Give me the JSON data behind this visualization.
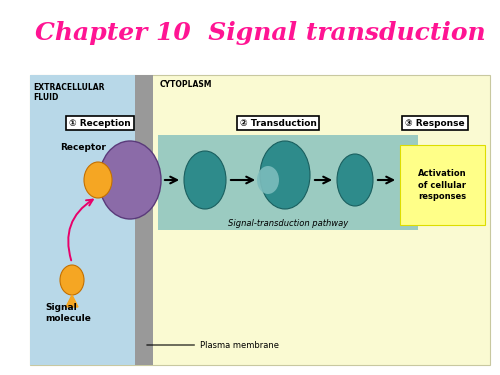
{
  "title": "Chapter 10  Signal transduction",
  "title_color": "#FF1493",
  "title_fontsize": 18,
  "bg_color": "#FFFFFF",
  "light_blue": "#B8D8E8",
  "light_yellow": "#FAFAD2",
  "teal_box_color": "#7BBCBC",
  "yellow_box_color": "#FFFF88",
  "purple_color": "#8B6BA8",
  "orange_color": "#F5A623",
  "teal_mol_color": "#2E8B8B",
  "pink_arrow": "#E8006A",
  "membrane_gray": "#999999",
  "extracellular_label": "EXTRACELLULAR\nFLUID",
  "cytoplasm_label": "CYTOPLASM",
  "label1": "① Reception",
  "label2": "② Transduction",
  "label3": "③ Response",
  "receptor_label": "Receptor",
  "signal_label": "Signal\nmolecule",
  "pathway_label": "Signal-transduction pathway",
  "plasma_label": "Plasma membrane",
  "activation_label": "Activation\nof cellular\nresponses"
}
